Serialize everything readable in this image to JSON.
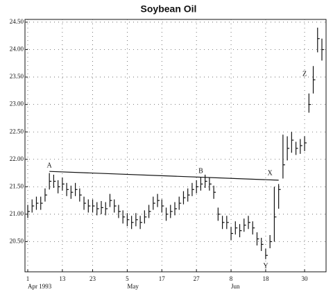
{
  "chart_data": {
    "type": "ohlc",
    "title": "Soybean Oil",
    "categories": [
      "1",
      null,
      null,
      null,
      null,
      null,
      null,
      null,
      "13",
      null,
      null,
      null,
      null,
      null,
      null,
      "23",
      null,
      null,
      null,
      null,
      null,
      null,
      null,
      "5",
      null,
      null,
      null,
      null,
      null,
      null,
      null,
      "17",
      null,
      null,
      null,
      null,
      null,
      null,
      null,
      "27",
      null,
      null,
      null,
      null,
      null,
      null,
      null,
      "8",
      null,
      null,
      null,
      null,
      null,
      null,
      null,
      "18",
      null,
      null,
      null,
      null,
      null,
      null,
      null,
      null,
      "30",
      null,
      null,
      null,
      null
    ],
    "months": [
      "Apr 1993",
      null,
      null,
      null,
      null,
      null,
      null,
      null,
      null,
      null,
      null,
      null,
      null,
      null,
      null,
      null,
      null,
      null,
      null,
      null,
      null,
      null,
      null,
      "May",
      null,
      null,
      null,
      null,
      null,
      null,
      null,
      null,
      null,
      null,
      null,
      null,
      null,
      null,
      null,
      null,
      null,
      null,
      null,
      null,
      null,
      null,
      null,
      "Jun",
      null,
      null,
      null,
      null,
      null,
      null,
      null,
      null,
      null,
      null,
      null,
      null,
      null,
      null,
      null,
      null,
      null,
      null,
      null,
      null,
      null
    ],
    "high": [
      21.17,
      21.27,
      21.32,
      21.32,
      21.47,
      21.75,
      21.72,
      21.62,
      21.67,
      21.57,
      21.52,
      21.57,
      21.47,
      21.32,
      21.27,
      21.27,
      21.22,
      21.24,
      21.22,
      21.37,
      21.27,
      21.17,
      21.07,
      21.02,
      20.97,
      21.02,
      20.97,
      21.07,
      21.17,
      21.32,
      21.37,
      21.27,
      21.12,
      21.17,
      21.22,
      21.32,
      21.42,
      21.47,
      21.57,
      21.62,
      21.67,
      21.72,
      21.67,
      21.52,
      21.12,
      20.97,
      20.97,
      20.77,
      20.87,
      20.82,
      20.92,
      20.97,
      20.87,
      20.67,
      20.57,
      20.37,
      20.62,
      21.5,
      21.55,
      22.45,
      22.42,
      22.5,
      22.32,
      22.37,
      22.42,
      23.2,
      23.7,
      24.4,
      24.2
    ],
    "low": [
      20.93,
      21.03,
      21.08,
      21.08,
      21.23,
      21.45,
      21.48,
      21.38,
      21.43,
      21.33,
      21.28,
      21.33,
      21.23,
      21.08,
      21.03,
      21.03,
      20.98,
      21.0,
      20.98,
      21.13,
      21.03,
      20.93,
      20.83,
      20.78,
      20.73,
      20.78,
      20.73,
      20.83,
      20.93,
      21.08,
      21.13,
      21.03,
      20.88,
      20.93,
      20.98,
      21.08,
      21.18,
      21.23,
      21.33,
      21.38,
      21.43,
      21.48,
      21.43,
      21.28,
      20.88,
      20.73,
      20.73,
      20.53,
      20.63,
      20.58,
      20.68,
      20.73,
      20.63,
      20.43,
      20.33,
      20.18,
      20.38,
      20.5,
      21.1,
      21.65,
      21.98,
      22.12,
      22.08,
      22.1,
      22.15,
      22.85,
      23.2,
      23.95,
      23.8
    ],
    "close": [
      21.05,
      21.15,
      21.2,
      21.2,
      21.35,
      21.6,
      21.6,
      21.5,
      21.55,
      21.45,
      21.4,
      21.45,
      21.35,
      21.2,
      21.15,
      21.15,
      21.1,
      21.12,
      21.1,
      21.25,
      21.15,
      21.05,
      20.95,
      20.9,
      20.85,
      20.9,
      20.85,
      20.95,
      21.05,
      21.2,
      21.25,
      21.15,
      21.0,
      21.05,
      21.1,
      21.2,
      21.3,
      21.35,
      21.45,
      21.5,
      21.55,
      21.6,
      21.55,
      21.4,
      21.0,
      20.85,
      20.85,
      20.65,
      20.75,
      20.7,
      20.8,
      20.85,
      20.75,
      20.55,
      20.45,
      20.25,
      20.5,
      20.95,
      21.45,
      21.9,
      22.2,
      22.35,
      22.2,
      22.25,
      22.3,
      23.0,
      23.45,
      24.2,
      24.0
    ],
    "color": "#111111",
    "ylim": [
      19.95,
      24.55
    ],
    "yticks": [
      {
        "value": 20.5,
        "label": "20.50"
      },
      {
        "value": 21,
        "label": "21.00"
      },
      {
        "value": 21.5,
        "label": "21.50"
      },
      {
        "value": 22,
        "label": "22.00"
      },
      {
        "value": 22.5,
        "label": "22.50"
      },
      {
        "value": 23,
        "label": "23.00"
      },
      {
        "value": 23.5,
        "label": "23.50"
      },
      {
        "value": 24,
        "label": "24.00"
      },
      {
        "value": 24.5,
        "label": "24.50"
      }
    ],
    "grid": true,
    "trendline": {
      "x": [
        5,
        58
      ],
      "y": [
        21.78,
        21.62
      ]
    },
    "annotations": [
      {
        "text": "A",
        "x": 5,
        "y": 21.88
      },
      {
        "text": "B",
        "x": 40,
        "y": 21.78
      },
      {
        "text": "X",
        "x": 56,
        "y": 21.74
      },
      {
        "text": "Y",
        "x": 55,
        "y": 20.05
      },
      {
        "text": "Z",
        "x": 64,
        "y": 23.55
      }
    ]
  }
}
